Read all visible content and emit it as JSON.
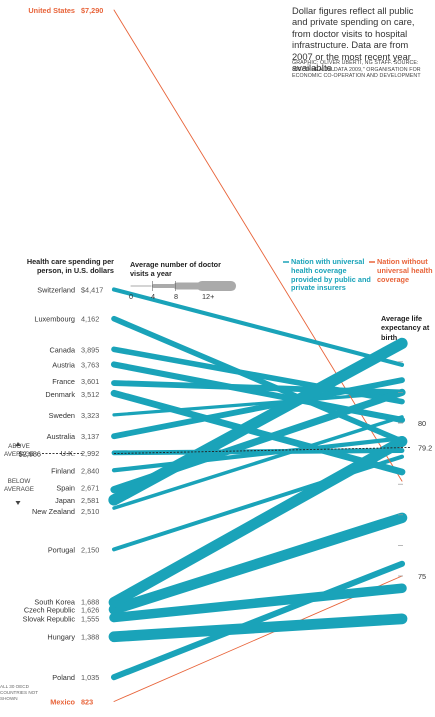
{
  "notes": {
    "main": "Dollar figures reflect all public and private spending on care, from doctor visits to hospital infrastructure. Data are from 2007 or the most recent year availabIte.",
    "credit": "GRAPHIC: OLIVER UBERTI, NG STAFF. SOURCE: \"OECD HEALTH DATA 2009,\" ORGANISATION FOR ECONOMIC CO-OPERATION AND DEVELOPMENT",
    "footnote": "ALL 30 OECD COUNTRIES NOT SHOWN"
  },
  "labels": {
    "health_care": "Health care spending per person, in U.S. dollars",
    "visits_title": "Average number of doctor visits a year",
    "visit_ticks": [
      "0",
      "4",
      "8",
      "12+"
    ],
    "life_expectancy": "Average life expectancy at birth",
    "legend_universal": "Nation with universal health coverage provided by public and private insurers",
    "legend_no_universal": "Nation without universal health coverage",
    "above": "ABOVE AVERAGE",
    "below": "BELOW AVERAGE",
    "average_value": "$2,986",
    "life_ticks": [
      "80",
      "79.2",
      "75"
    ]
  },
  "colors": {
    "universal": "#1aa3b9",
    "no_universal": "#e8643a",
    "text": "#222222",
    "muted": "#666666"
  },
  "chart_data": {
    "type": "slope",
    "left_axis": "Health care spending per person, in U.S. dollars",
    "right_axis": "Average life expectancy at birth",
    "average_spending": 2986,
    "average_life_expectancy": 79.2,
    "life_expectancy_ticks": [
      75,
      79.2,
      80
    ],
    "visit_scale": [
      0,
      4,
      8,
      12
    ],
    "series": [
      {
        "country": "United States",
        "spending": 7290,
        "spending_label": "$7,290",
        "life_expectancy": 78.1,
        "doctor_visits": 4.0,
        "universal": false
      },
      {
        "country": "Switzerland",
        "spending": 4417,
        "spending_label": "$4,417",
        "life_expectancy": 81.9,
        "doctor_visits": 4.0,
        "universal": true
      },
      {
        "country": "Luxembourg",
        "spending": 4162,
        "spending_label": "4,162",
        "life_expectancy": 79.4,
        "doctor_visits": 6.0,
        "universal": true
      },
      {
        "country": "Canada",
        "spending": 3895,
        "spending_label": "3,895",
        "life_expectancy": 80.7,
        "doctor_visits": 6.0,
        "universal": true
      },
      {
        "country": "Austria",
        "spending": 3763,
        "spending_label": "3,763",
        "life_expectancy": 80.1,
        "doctor_visits": 6.7,
        "universal": true
      },
      {
        "country": "France",
        "spending": 3601,
        "spending_label": "3,601",
        "life_expectancy": 81.0,
        "doctor_visits": 6.3,
        "universal": true
      },
      {
        "country": "Denmark",
        "spending": 3512,
        "spending_label": "3,512",
        "life_expectancy": 78.4,
        "doctor_visits": 7.5,
        "universal": true
      },
      {
        "country": "Sweden",
        "spending": 3323,
        "spending_label": "3,323",
        "life_expectancy": 81.0,
        "doctor_visits": 2.8,
        "universal": true
      },
      {
        "country": "Australia",
        "spending": 3137,
        "spending_label": "3,137",
        "life_expectancy": 81.4,
        "doctor_visits": 6.3,
        "universal": true
      },
      {
        "country": "U.K.",
        "spending": 2992,
        "spending_label": "2,992",
        "life_expectancy": 79.1,
        "doctor_visits": 5.0,
        "universal": true
      },
      {
        "country": "Finland",
        "spending": 2840,
        "spending_label": "2,840",
        "life_expectancy": 79.5,
        "doctor_visits": 4.2,
        "universal": true
      },
      {
        "country": "Spain",
        "spending": 2671,
        "spending_label": "2,671",
        "life_expectancy": 81.0,
        "doctor_visits": 8.1,
        "universal": true
      },
      {
        "country": "Japan",
        "spending": 2581,
        "spending_label": "2,581",
        "life_expectancy": 82.6,
        "doctor_visits": 13.6,
        "universal": true
      },
      {
        "country": "New Zealand",
        "spending": 2510,
        "spending_label": "2,510",
        "life_expectancy": 80.2,
        "doctor_visits": 3.2,
        "universal": true
      },
      {
        "country": "Portugal",
        "spending": 2150,
        "spending_label": "2,150",
        "life_expectancy": 78.9,
        "doctor_visits": 3.9,
        "universal": true
      },
      {
        "country": "South Korea",
        "spending": 1688,
        "spending_label": "1,688",
        "life_expectancy": 79.4,
        "doctor_visits": 12.9,
        "universal": true
      },
      {
        "country": "Czech Republic",
        "spending": 1626,
        "spending_label": "1,626",
        "life_expectancy": 76.9,
        "doctor_visits": 12.6,
        "universal": true
      },
      {
        "country": "Slovak Republic",
        "spending": 1555,
        "spending_label": "1,555",
        "life_expectancy": 74.6,
        "doctor_visits": 11.2,
        "universal": true
      },
      {
        "country": "Hungary",
        "spending": 1388,
        "spending_label": "1,388",
        "life_expectancy": 73.6,
        "doctor_visits": 12.9,
        "universal": true
      },
      {
        "country": "Poland",
        "spending": 1035,
        "spending_label": "1,035",
        "life_expectancy": 75.4,
        "doctor_visits": 6.6,
        "universal": true
      },
      {
        "country": "Mexico",
        "spending": 823,
        "spending_label": "823",
        "life_expectancy": 75.0,
        "doctor_visits": 2.9,
        "universal": false
      }
    ]
  }
}
